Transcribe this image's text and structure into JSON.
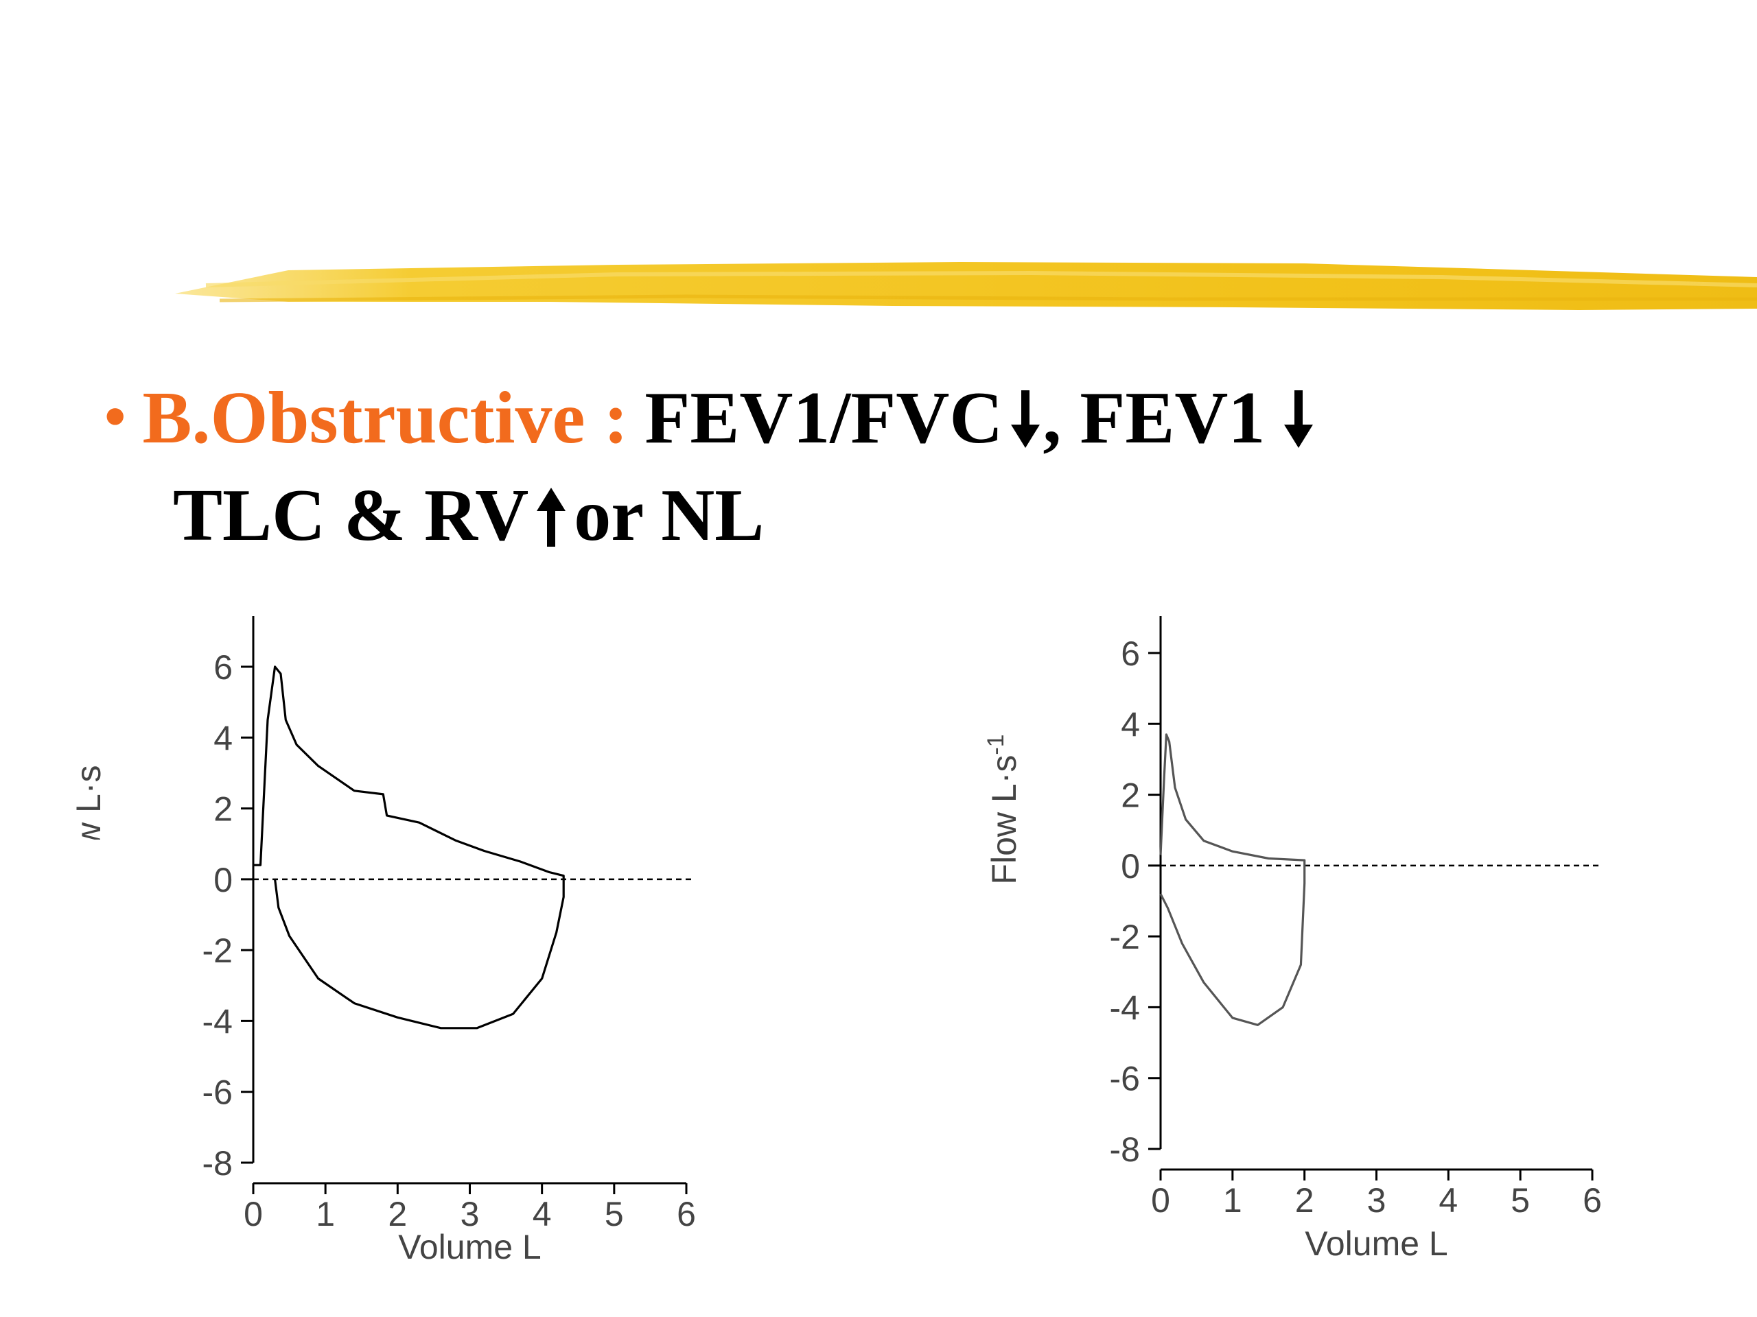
{
  "bullet": "•",
  "heading": {
    "category": "B.Obstructive :",
    "line1_part1": "FEV1/FVC",
    "line1_part2": ", FEV1",
    "line2_part1": "TLC & RV",
    "line2_part2": "or NL",
    "accent_color": "#f26b1d",
    "highlight_color": "#f2c21b"
  },
  "chart_data": [
    {
      "type": "line",
      "xlabel": "Volume L",
      "ylabel": "Flow L·s",
      "xlim": [
        0,
        6
      ],
      "ylim": [
        -8,
        7
      ],
      "xticks": [
        "0",
        "1",
        "2",
        "3",
        "4",
        "5",
        "6"
      ],
      "yticks": [
        "6",
        "4",
        "2",
        "0",
        "-2",
        "-4",
        "-6",
        "-8"
      ],
      "baseline": 0,
      "series": [
        {
          "points": [
            [
              0,
              0.4
            ],
            [
              0.1,
              0.4
            ],
            [
              0.2,
              4.5
            ],
            [
              0.3,
              6.0
            ],
            [
              0.38,
              5.8
            ],
            [
              0.45,
              4.5
            ],
            [
              0.6,
              3.8
            ],
            [
              0.9,
              3.2
            ],
            [
              1.4,
              2.5
            ],
            [
              1.8,
              2.4
            ],
            [
              1.85,
              1.8
            ],
            [
              2.3,
              1.6
            ],
            [
              2.8,
              1.1
            ],
            [
              3.2,
              0.8
            ],
            [
              3.7,
              0.5
            ],
            [
              4.1,
              0.2
            ],
            [
              4.3,
              0.1
            ],
            [
              4.3,
              -0.5
            ],
            [
              4.2,
              -1.5
            ],
            [
              4.0,
              -2.8
            ],
            [
              3.6,
              -3.8
            ],
            [
              3.1,
              -4.2
            ],
            [
              2.6,
              -4.2
            ],
            [
              2.0,
              -3.9
            ],
            [
              1.4,
              -3.5
            ],
            [
              0.9,
              -2.8
            ],
            [
              0.5,
              -1.6
            ],
            [
              0.35,
              -0.8
            ],
            [
              0.3,
              0
            ]
          ]
        }
      ]
    },
    {
      "type": "line",
      "xlabel": "Volume L",
      "ylabel": "Flow L·s-1",
      "xlim": [
        0,
        6
      ],
      "ylim": [
        -8,
        7
      ],
      "xticks": [
        "0",
        "1",
        "2",
        "3",
        "4",
        "5",
        "6"
      ],
      "yticks": [
        "6",
        "4",
        "2",
        "0",
        "-2",
        "-4",
        "-6",
        "-8"
      ],
      "baseline": 0,
      "series": [
        {
          "points": [
            [
              0,
              0.3
            ],
            [
              0.05,
              2.5
            ],
            [
              0.08,
              3.7
            ],
            [
              0.12,
              3.5
            ],
            [
              0.2,
              2.2
            ],
            [
              0.35,
              1.3
            ],
            [
              0.6,
              0.7
            ],
            [
              1.0,
              0.4
            ],
            [
              1.5,
              0.2
            ],
            [
              2.0,
              0.15
            ],
            [
              2.0,
              -0.5
            ],
            [
              1.95,
              -2.8
            ],
            [
              1.7,
              -4.0
            ],
            [
              1.35,
              -4.5
            ],
            [
              1.0,
              -4.3
            ],
            [
              0.6,
              -3.3
            ],
            [
              0.3,
              -2.2
            ],
            [
              0.1,
              -1.2
            ],
            [
              0.0,
              -0.8
            ]
          ]
        }
      ]
    }
  ]
}
